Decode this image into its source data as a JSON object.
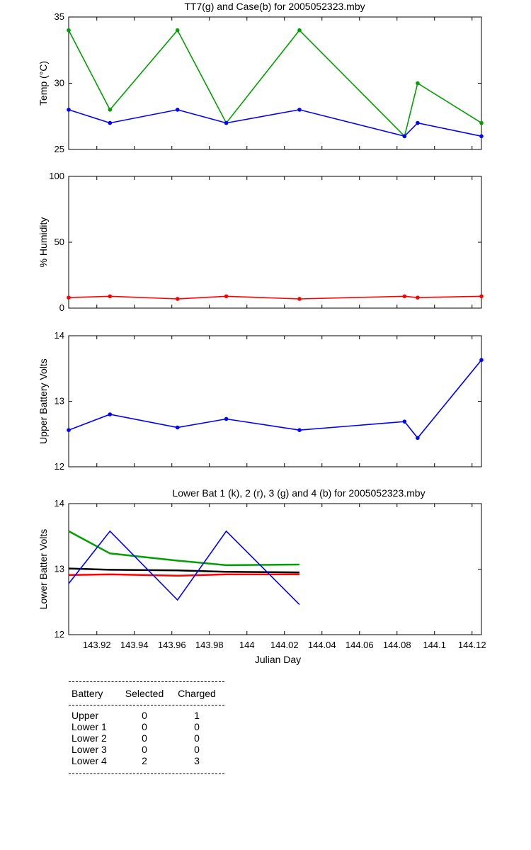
{
  "chart_data": [
    {
      "type": "line",
      "title": "TT7(g) and Case(b) for 2005052323.mby",
      "xlabel": "",
      "ylabel": "Temp  (°C)",
      "xlim": [
        143.905,
        144.125
      ],
      "ylim": [
        25,
        35
      ],
      "yticks": [
        25,
        30,
        35
      ],
      "grid": false,
      "series": [
        {
          "color": "#00a000",
          "x": [
            143.905,
            143.927,
            143.963,
            143.989,
            144.028,
            144.084,
            144.091,
            144.125
          ],
          "values": [
            34,
            28,
            34,
            27,
            34,
            26,
            30,
            27
          ]
        },
        {
          "color": "#0000ff",
          "x": [
            143.905,
            143.927,
            143.963,
            143.989,
            144.028,
            144.084,
            144.091,
            144.125
          ],
          "values": [
            28,
            27,
            28,
            27,
            28,
            26,
            27,
            26
          ]
        }
      ]
    },
    {
      "type": "line",
      "title": "",
      "xlabel": "",
      "ylabel": "% Humidity",
      "xlim": [
        143.905,
        144.125
      ],
      "ylim": [
        0,
        100
      ],
      "yticks": [
        0,
        50,
        100
      ],
      "grid": false,
      "series": [
        {
          "color": "#ff0000",
          "x": [
            143.905,
            143.927,
            143.963,
            143.989,
            144.028,
            144.084,
            144.091,
            144.125
          ],
          "values": [
            8,
            9,
            7,
            9,
            7,
            9,
            8,
            9
          ]
        }
      ]
    },
    {
      "type": "line",
      "title": "",
      "xlabel": "",
      "ylabel": "Upper Battery Volts",
      "xlim": [
        143.905,
        144.125
      ],
      "ylim": [
        12,
        14
      ],
      "yticks": [
        12,
        13,
        14
      ],
      "grid": false,
      "series": [
        {
          "color": "#0000ff",
          "x": [
            143.905,
            143.927,
            143.963,
            143.989,
            144.028,
            144.084,
            144.091,
            144.125
          ],
          "values": [
            12.56,
            12.8,
            12.6,
            12.73,
            12.56,
            12.69,
            12.44,
            13.63
          ]
        }
      ]
    },
    {
      "type": "line",
      "title": "Lower Bat 1 (k), 2 (r), 3 (g) and 4 (b) for 2005052323.mby",
      "xlabel": "Julian Day",
      "ylabel": "Lower Batter Volts",
      "xlim": [
        143.905,
        144.125
      ],
      "ylim": [
        12,
        14
      ],
      "yticks": [
        12,
        13,
        14
      ],
      "xticks": [
        "143.92",
        "143.94",
        "143.96",
        "143.98",
        "144",
        "144.02",
        "144.04",
        "144.06",
        "144.08",
        "144.1",
        "144.12"
      ],
      "grid": false,
      "series": [
        {
          "color": "#000000",
          "x": [
            143.905,
            143.927,
            143.963,
            143.989,
            144.028
          ],
          "values": [
            13.01,
            12.99,
            12.98,
            12.96,
            12.95
          ]
        },
        {
          "color": "#ff0000",
          "x": [
            143.905,
            143.927,
            143.963,
            143.989,
            144.028
          ],
          "values": [
            12.91,
            12.92,
            12.9,
            12.92,
            12.92
          ]
        },
        {
          "color": "#00a000",
          "x": [
            143.905,
            143.927,
            143.963,
            143.989,
            144.028
          ],
          "values": [
            13.58,
            13.24,
            13.13,
            13.06,
            13.07
          ]
        },
        {
          "color": "#0000ff",
          "x": [
            143.905,
            143.927,
            143.963,
            143.989,
            144.028
          ],
          "values": [
            12.78,
            13.58,
            12.53,
            13.58,
            12.46
          ]
        }
      ]
    }
  ],
  "battery_table": {
    "headers": [
      "Battery",
      "Selected",
      "Charged"
    ],
    "rows": [
      [
        "Upper",
        "0",
        "1"
      ],
      [
        "Lower 1",
        "0",
        "0"
      ],
      [
        "Lower 2",
        "0",
        "0"
      ],
      [
        "Lower 3",
        "0",
        "0"
      ],
      [
        "Lower 4",
        "2",
        "3"
      ]
    ]
  }
}
